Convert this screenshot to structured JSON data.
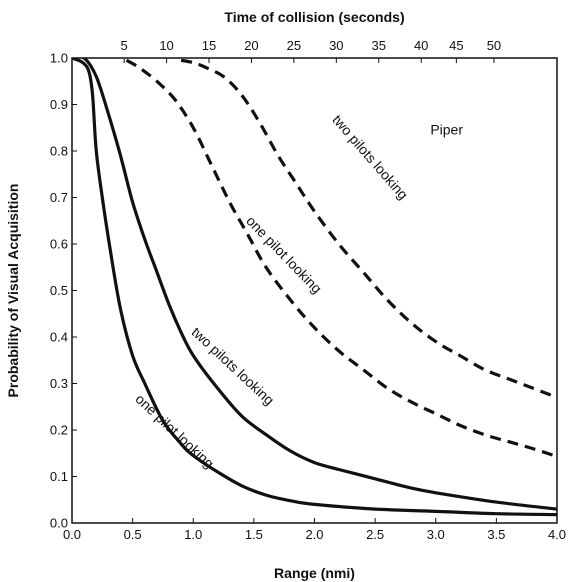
{
  "chart_data": {
    "type": "line",
    "xlabel": "Range (nmi)",
    "ylabel": "Probability of Visual Acquisition",
    "top_axis_label": "Time of collision (seconds)",
    "xlim": [
      0,
      4
    ],
    "ylim": [
      0,
      1
    ],
    "x_ticks": [
      "0.0",
      "0.5",
      "1.0",
      "1.5",
      "2.0",
      "2.5",
      "3.0",
      "3.5",
      "4.0"
    ],
    "y_ticks": [
      "0.0",
      "0.1",
      "0.2",
      "0.3",
      "0.4",
      "0.5",
      "0.6",
      "0.7",
      "0.8",
      "0.9",
      "1.0"
    ],
    "top_ticks": [
      {
        "label": "5",
        "x": 0.43
      },
      {
        "label": "10",
        "x": 0.78
      },
      {
        "label": "15",
        "x": 1.13
      },
      {
        "label": "20",
        "x": 1.48
      },
      {
        "label": "25",
        "x": 1.83
      },
      {
        "label": "30",
        "x": 2.18
      },
      {
        "label": "35",
        "x": 2.53
      },
      {
        "label": "40",
        "x": 2.88
      },
      {
        "label": "45",
        "x": 3.17
      },
      {
        "label": "50",
        "x": 3.48
      }
    ],
    "series": [
      {
        "name": "one pilot looking",
        "style": "solid",
        "points": [
          [
            0.0,
            1.0
          ],
          [
            0.09,
            0.99
          ],
          [
            0.14,
            0.97
          ],
          [
            0.17,
            0.92
          ],
          [
            0.2,
            0.8
          ],
          [
            0.25,
            0.7
          ],
          [
            0.32,
            0.58
          ],
          [
            0.4,
            0.46
          ],
          [
            0.5,
            0.36
          ],
          [
            0.6,
            0.3
          ],
          [
            0.75,
            0.22
          ],
          [
            0.9,
            0.17
          ],
          [
            1.0,
            0.145
          ],
          [
            1.2,
            0.11
          ],
          [
            1.4,
            0.08
          ],
          [
            1.6,
            0.06
          ],
          [
            1.8,
            0.048
          ],
          [
            2.0,
            0.04
          ],
          [
            2.5,
            0.03
          ],
          [
            3.0,
            0.025
          ],
          [
            3.5,
            0.02
          ],
          [
            4.0,
            0.018
          ]
        ]
      },
      {
        "name": "two pilots looking",
        "style": "solid",
        "points": [
          [
            0.0,
            1.0
          ],
          [
            0.1,
            1.0
          ],
          [
            0.2,
            0.96
          ],
          [
            0.3,
            0.88
          ],
          [
            0.4,
            0.79
          ],
          [
            0.5,
            0.69
          ],
          [
            0.6,
            0.61
          ],
          [
            0.7,
            0.54
          ],
          [
            0.8,
            0.47
          ],
          [
            0.9,
            0.41
          ],
          [
            1.0,
            0.36
          ],
          [
            1.2,
            0.29
          ],
          [
            1.4,
            0.23
          ],
          [
            1.6,
            0.19
          ],
          [
            1.8,
            0.155
          ],
          [
            2.0,
            0.13
          ],
          [
            2.2,
            0.115
          ],
          [
            2.5,
            0.095
          ],
          [
            2.8,
            0.075
          ],
          [
            3.0,
            0.065
          ],
          [
            3.5,
            0.045
          ],
          [
            4.0,
            0.03
          ]
        ]
      },
      {
        "name": "one pilot looking",
        "style": "dashed",
        "points": [
          [
            0.45,
            0.995
          ],
          [
            0.55,
            0.98
          ],
          [
            0.7,
            0.95
          ],
          [
            0.85,
            0.91
          ],
          [
            1.0,
            0.85
          ],
          [
            1.15,
            0.77
          ],
          [
            1.3,
            0.69
          ],
          [
            1.45,
            0.62
          ],
          [
            1.6,
            0.55
          ],
          [
            1.8,
            0.48
          ],
          [
            2.0,
            0.42
          ],
          [
            2.2,
            0.37
          ],
          [
            2.4,
            0.33
          ],
          [
            2.6,
            0.29
          ],
          [
            2.8,
            0.26
          ],
          [
            3.0,
            0.235
          ],
          [
            3.2,
            0.21
          ],
          [
            3.4,
            0.19
          ],
          [
            3.6,
            0.175
          ],
          [
            3.8,
            0.16
          ],
          [
            4.0,
            0.143
          ]
        ]
      },
      {
        "name": "two pilots looking",
        "style": "dashed",
        "points": [
          [
            0.9,
            0.995
          ],
          [
            1.0,
            0.99
          ],
          [
            1.1,
            0.98
          ],
          [
            1.25,
            0.96
          ],
          [
            1.4,
            0.92
          ],
          [
            1.55,
            0.86
          ],
          [
            1.7,
            0.79
          ],
          [
            1.85,
            0.73
          ],
          [
            2.0,
            0.67
          ],
          [
            2.2,
            0.6
          ],
          [
            2.4,
            0.54
          ],
          [
            2.6,
            0.48
          ],
          [
            2.8,
            0.43
          ],
          [
            3.0,
            0.39
          ],
          [
            3.2,
            0.36
          ],
          [
            3.4,
            0.33
          ],
          [
            3.6,
            0.31
          ],
          [
            3.8,
            0.29
          ],
          [
            4.0,
            0.27
          ]
        ]
      }
    ],
    "annotations": [
      {
        "text": "one pilot looking",
        "x": 0.82,
        "y": 0.19,
        "rotate": 43
      },
      {
        "text": "two pilots looking",
        "x": 1.3,
        "y": 0.33,
        "rotate": 43
      },
      {
        "text": "one pilot looking",
        "x": 1.72,
        "y": 0.57,
        "rotate": 46
      },
      {
        "text": "two pilots looking",
        "x": 2.43,
        "y": 0.78,
        "rotate": 49
      },
      {
        "text": "Piper",
        "x": 3.09,
        "y": 0.835,
        "rotate": 0
      }
    ]
  }
}
